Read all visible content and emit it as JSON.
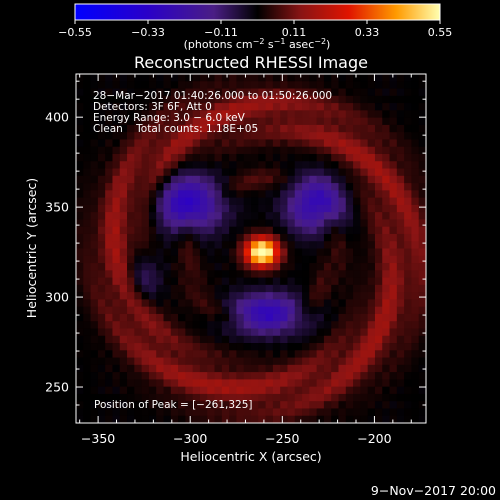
{
  "chart_data": {
    "type": "heatmap",
    "title": "Reconstructed RHESSI Image",
    "xlabel": "Heliocentric X (arcsec)",
    "ylabel": "Heliocentric Y (arcsec)",
    "xlim": [
      -362,
      -172
    ],
    "ylim": [
      230,
      424
    ],
    "x_ticks": [
      -350,
      -300,
      -250,
      -200
    ],
    "y_ticks": [
      250,
      300,
      350,
      400
    ],
    "x_tick_labels": [
      "−350",
      "−300",
      "−250",
      "−200"
    ],
    "y_tick_labels": [
      "250",
      "300",
      "350",
      "400"
    ],
    "colorbar": {
      "range": [
        -0.55,
        0.55
      ],
      "ticks": [
        -0.55,
        -0.33,
        -0.11,
        0.11,
        0.33,
        0.55
      ],
      "tick_labels": [
        "−0.55",
        "−0.33",
        "−0.11",
        "0.11",
        "0.33",
        "0.55"
      ],
      "units_parts": [
        "(photons cm",
        "−2",
        " s",
        "−1",
        " asec",
        "−2",
        ")"
      ]
    },
    "annotations": [
      "28−Mar−2017 01:40:26.000 to 01:50:26.000",
      "Detectors: 3F 6F, Att 0",
      "Energy Range: 3.0 − 6.0 keV",
      "Clean    Total counts: 1.18E+05"
    ],
    "peak_label": "Position of Peak = [−261,325]",
    "peak": {
      "x": -261,
      "y": 325,
      "value": 0.55
    },
    "features": [
      {
        "kind": "peak",
        "x": -261,
        "y": 325,
        "sx": 9,
        "sy": 8,
        "amp": 0.62
      },
      {
        "kind": "negative",
        "x": -300,
        "y": 352,
        "sx": 17,
        "sy": 15,
        "amp": -0.34
      },
      {
        "kind": "negative",
        "x": -232,
        "y": 352,
        "sx": 15,
        "sy": 15,
        "amp": -0.32
      },
      {
        "kind": "negative",
        "x": -258,
        "y": 290,
        "sx": 20,
        "sy": 11,
        "amp": -0.32
      },
      {
        "kind": "negative",
        "x": -325,
        "y": 310,
        "sx": 10,
        "sy": 14,
        "amp": -0.12
      },
      {
        "kind": "ring",
        "x": -262,
        "y": 325,
        "radius": 78,
        "width": 16,
        "amp": 0.17
      },
      {
        "kind": "ring",
        "x": -262,
        "y": 325,
        "radius": 40,
        "width": 7,
        "amp": 0.08
      }
    ]
  },
  "footer": {
    "date": "9−Nov−2017 20:00"
  }
}
